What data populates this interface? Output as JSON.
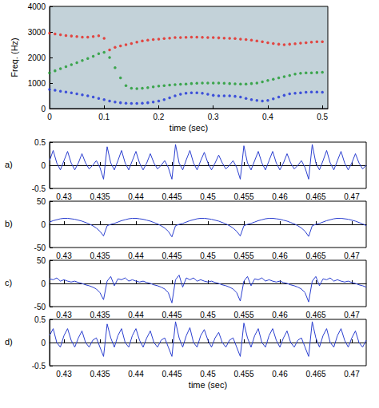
{
  "chart_data": [
    {
      "type": "scatter",
      "marker": "circle",
      "xlabel": "time (sec)",
      "ylabel": "Freq. (Hz)",
      "xlim": [
        0,
        0.51
      ],
      "xticks": [
        0,
        0.1,
        0.2,
        0.3,
        0.4,
        0.5
      ],
      "ylim": [
        0,
        4000
      ],
      "yticks": [
        0,
        1000,
        2000,
        3000,
        4000
      ],
      "x": [
        0,
        0.01,
        0.02,
        0.03,
        0.04,
        0.05,
        0.06,
        0.07,
        0.08,
        0.09,
        0.1,
        0.11,
        0.12,
        0.13,
        0.14,
        0.15,
        0.16,
        0.17,
        0.18,
        0.19,
        0.2,
        0.21,
        0.22,
        0.23,
        0.24,
        0.25,
        0.26,
        0.27,
        0.28,
        0.29,
        0.3,
        0.31,
        0.32,
        0.33,
        0.34,
        0.35,
        0.36,
        0.37,
        0.38,
        0.39,
        0.4,
        0.41,
        0.42,
        0.43,
        0.44,
        0.45,
        0.46,
        0.47,
        0.48,
        0.49,
        0.5
      ],
      "series": [
        {
          "color": "#e8231c",
          "values": [
            2950,
            2920,
            2890,
            2860,
            2840,
            2820,
            2800,
            2800,
            2820,
            2850,
            2750,
            2300,
            2400,
            2450,
            2500,
            2550,
            2600,
            2650,
            2680,
            2700,
            2720,
            2740,
            2760,
            2780,
            2780,
            2790,
            2800,
            2800,
            2790,
            2780,
            2780,
            2770,
            2760,
            2750,
            2740,
            2720,
            2700,
            2680,
            2650,
            2620,
            2580,
            2550,
            2520,
            2500,
            2520,
            2540,
            2560,
            2580,
            2600,
            2620,
            2620
          ]
        },
        {
          "color": "#1a9a2a",
          "values": [
            1400,
            1480,
            1560,
            1640,
            1720,
            1800,
            1880,
            1960,
            2050,
            2150,
            2200,
            2000,
            1600,
            1200,
            900,
            800,
            780,
            800,
            820,
            850,
            880,
            900,
            920,
            940,
            950,
            960,
            980,
            990,
            1000,
            1000,
            1000,
            1000,
            990,
            980,
            970,
            960,
            960,
            980,
            1000,
            1050,
            1100,
            1150,
            1200,
            1250,
            1300,
            1350,
            1380,
            1400,
            1400,
            1410,
            1420
          ]
        },
        {
          "color": "#1c2fd8",
          "values": [
            750,
            720,
            680,
            650,
            620,
            580,
            540,
            500,
            450,
            400,
            350,
            300,
            260,
            230,
            210,
            200,
            200,
            210,
            230,
            260,
            300,
            350,
            420,
            500,
            560,
            600,
            620,
            620,
            600,
            560,
            520,
            500,
            500,
            500,
            480,
            450,
            400,
            350,
            320,
            300,
            320,
            380,
            450,
            520,
            580,
            600,
            620,
            640,
            650,
            650,
            640
          ]
        }
      ]
    },
    {
      "type": "line",
      "label": "a)",
      "color": "#2b3fd0",
      "xlim": [
        0.428,
        0.472
      ],
      "xticks": [
        0.43,
        0.435,
        0.44,
        0.445,
        0.45,
        0.455,
        0.46,
        0.465,
        0.47
      ],
      "ylim": [
        -0.5,
        0.5
      ],
      "yticks": [
        -0.5,
        0,
        0.5
      ],
      "x": [
        0.428,
        0.4285,
        0.429,
        0.4295,
        0.43,
        0.4305,
        0.431,
        0.4315,
        0.432,
        0.4325,
        0.433,
        0.4335,
        0.434,
        0.4345,
        0.435,
        0.4355,
        0.436,
        0.4365,
        0.437,
        0.4375,
        0.438,
        0.4385,
        0.439,
        0.4395,
        0.44,
        0.4405,
        0.441,
        0.4415,
        0.442,
        0.4425,
        0.443,
        0.4435,
        0.444,
        0.4445,
        0.445,
        0.4455,
        0.446,
        0.4465,
        0.447,
        0.4475,
        0.448,
        0.4485,
        0.449,
        0.4495,
        0.45,
        0.4505,
        0.451,
        0.4515,
        0.452,
        0.4525,
        0.453,
        0.4535,
        0.454,
        0.4545,
        0.455,
        0.4555,
        0.456,
        0.4565,
        0.457,
        0.4575,
        0.458,
        0.4585,
        0.459,
        0.4595,
        0.46,
        0.4605,
        0.461,
        0.4615,
        0.462,
        0.4625,
        0.463,
        0.4635,
        0.464,
        0.4645,
        0.465,
        0.4655,
        0.466,
        0.4665,
        0.467,
        0.4675,
        0.468,
        0.4685,
        0.469,
        0.4695,
        0.47,
        0.4705,
        0.471,
        0.4715,
        0.472
      ],
      "values": [
        0.1,
        0.32,
        0.05,
        -0.1,
        0.1,
        0.3,
        0.05,
        -0.1,
        0.05,
        0.25,
        0.05,
        -0.08,
        0,
        0.1,
        -0.05,
        -0.3,
        0.4,
        0.05,
        -0.1,
        0.1,
        0.32,
        0.05,
        -0.1,
        0.1,
        0.3,
        0.05,
        -0.1,
        0.05,
        0.25,
        0.05,
        -0.08,
        0,
        0.1,
        -0.05,
        -0.3,
        0.45,
        0.05,
        -0.1,
        0.12,
        0.32,
        0.05,
        -0.1,
        0.1,
        0.28,
        0.05,
        -0.1,
        0.05,
        0.22,
        0.05,
        -0.08,
        0,
        0.1,
        -0.05,
        -0.3,
        0.42,
        0.05,
        -0.1,
        0.1,
        0.3,
        0.05,
        -0.1,
        0.1,
        0.3,
        0.05,
        -0.1,
        0.05,
        0.25,
        0.05,
        -0.08,
        0,
        0.1,
        -0.05,
        -0.3,
        0.45,
        0.05,
        -0.1,
        0.1,
        0.32,
        0.05,
        -0.1,
        0.1,
        0.3,
        0.05,
        -0.1,
        0.05,
        0.25,
        0.05,
        -0.08,
        0
      ]
    },
    {
      "type": "line",
      "label": "b)",
      "color": "#2b3fd0",
      "xlim": [
        0.428,
        0.472
      ],
      "xticks": [
        0.43,
        0.435,
        0.44,
        0.445,
        0.45,
        0.455,
        0.46,
        0.465,
        0.47
      ],
      "ylim": [
        -50,
        50
      ],
      "yticks": [
        -50,
        0,
        50
      ],
      "x": [
        0.428,
        0.4285,
        0.429,
        0.4295,
        0.43,
        0.4305,
        0.431,
        0.4315,
        0.432,
        0.4325,
        0.433,
        0.4335,
        0.434,
        0.4345,
        0.435,
        0.4355,
        0.436,
        0.4365,
        0.437,
        0.4375,
        0.438,
        0.4385,
        0.439,
        0.4395,
        0.44,
        0.4405,
        0.441,
        0.4415,
        0.442,
        0.4425,
        0.443,
        0.4435,
        0.444,
        0.4445,
        0.445,
        0.4455,
        0.446,
        0.4465,
        0.447,
        0.4475,
        0.448,
        0.4485,
        0.449,
        0.4495,
        0.45,
        0.4505,
        0.451,
        0.4515,
        0.452,
        0.4525,
        0.453,
        0.4535,
        0.454,
        0.4545,
        0.455,
        0.4555,
        0.456,
        0.4565,
        0.457,
        0.4575,
        0.458,
        0.4585,
        0.459,
        0.4595,
        0.46,
        0.4605,
        0.461,
        0.4615,
        0.462,
        0.4625,
        0.463,
        0.4635,
        0.464,
        0.4645,
        0.465,
        0.4655,
        0.466,
        0.4665,
        0.467,
        0.4675,
        0.468,
        0.4685,
        0.469,
        0.4695,
        0.47,
        0.4705,
        0.471,
        0.4715,
        0.472
      ],
      "values": [
        5,
        8,
        10,
        12,
        13,
        13,
        12,
        11,
        9,
        7,
        4,
        1,
        -3,
        -8,
        -15,
        -25,
        -3,
        0,
        2,
        5,
        8,
        10,
        12,
        13,
        13,
        12,
        11,
        9,
        7,
        4,
        1,
        -3,
        -8,
        -15,
        -27,
        -3,
        0,
        2,
        5,
        8,
        10,
        12,
        13,
        13,
        12,
        11,
        9,
        7,
        4,
        1,
        -3,
        -8,
        -15,
        -25,
        -3,
        0,
        2,
        5,
        8,
        10,
        12,
        13,
        13,
        12,
        11,
        9,
        7,
        4,
        1,
        -3,
        -8,
        -15,
        -26,
        -3,
        0,
        2,
        5,
        8,
        10,
        12,
        13,
        13,
        12,
        11,
        9,
        7,
        4,
        1,
        -3
      ]
    },
    {
      "type": "line",
      "label": "c)",
      "color": "#2b3fd0",
      "xlim": [
        0.428,
        0.472
      ],
      "xticks": [
        0.43,
        0.435,
        0.44,
        0.445,
        0.45,
        0.455,
        0.46,
        0.465,
        0.47
      ],
      "ylim": [
        -50,
        50
      ],
      "yticks": [
        -50,
        0,
        50
      ],
      "x": [
        0.428,
        0.4285,
        0.429,
        0.4295,
        0.43,
        0.4305,
        0.431,
        0.4315,
        0.432,
        0.4325,
        0.433,
        0.4335,
        0.434,
        0.4345,
        0.435,
        0.4355,
        0.436,
        0.4365,
        0.437,
        0.4375,
        0.438,
        0.4385,
        0.439,
        0.4395,
        0.44,
        0.4405,
        0.441,
        0.4415,
        0.442,
        0.4425,
        0.443,
        0.4435,
        0.444,
        0.4445,
        0.445,
        0.4455,
        0.446,
        0.4465,
        0.447,
        0.4475,
        0.448,
        0.4485,
        0.449,
        0.4495,
        0.45,
        0.4505,
        0.451,
        0.4515,
        0.452,
        0.4525,
        0.453,
        0.4535,
        0.454,
        0.4545,
        0.455,
        0.4555,
        0.456,
        0.4565,
        0.457,
        0.4575,
        0.458,
        0.4585,
        0.459,
        0.4595,
        0.46,
        0.4605,
        0.461,
        0.4615,
        0.462,
        0.4625,
        0.463,
        0.4635,
        0.464,
        0.4645,
        0.465,
        0.4655,
        0.466,
        0.4665,
        0.467,
        0.4675,
        0.468,
        0.4685,
        0.469,
        0.4695,
        0.47,
        0.4705,
        0.471,
        0.4715,
        0.472
      ],
      "values": [
        10,
        8,
        12,
        5,
        8,
        5,
        3,
        5,
        2,
        0,
        -3,
        -5,
        -8,
        -12,
        -20,
        -35,
        5,
        15,
        -5,
        10,
        8,
        12,
        5,
        8,
        5,
        3,
        5,
        2,
        0,
        -3,
        -5,
        -8,
        -12,
        -20,
        -42,
        8,
        18,
        -8,
        12,
        8,
        12,
        5,
        8,
        5,
        3,
        5,
        2,
        0,
        -3,
        -5,
        -8,
        -12,
        -20,
        -38,
        5,
        15,
        -5,
        10,
        8,
        12,
        5,
        8,
        5,
        3,
        5,
        2,
        0,
        -3,
        -5,
        -8,
        -12,
        -20,
        -40,
        5,
        15,
        -5,
        10,
        8,
        12,
        5,
        8,
        5,
        3,
        5,
        2,
        0,
        -3,
        -5,
        -8
      ]
    },
    {
      "type": "line",
      "label": "d)",
      "color": "#2b3fd0",
      "xlabel": "time (sec)",
      "xlim": [
        0.428,
        0.472
      ],
      "xticks": [
        0.43,
        0.435,
        0.44,
        0.445,
        0.45,
        0.455,
        0.46,
        0.465,
        0.47
      ],
      "ylim": [
        -0.5,
        0.5
      ],
      "yticks": [
        -0.5,
        0,
        0.5
      ],
      "x": [
        0.428,
        0.4285,
        0.429,
        0.4295,
        0.43,
        0.4305,
        0.431,
        0.4315,
        0.432,
        0.4325,
        0.433,
        0.4335,
        0.434,
        0.4345,
        0.435,
        0.4355,
        0.436,
        0.4365,
        0.437,
        0.4375,
        0.438,
        0.4385,
        0.439,
        0.4395,
        0.44,
        0.4405,
        0.441,
        0.4415,
        0.442,
        0.4425,
        0.443,
        0.4435,
        0.444,
        0.4445,
        0.445,
        0.4455,
        0.446,
        0.4465,
        0.447,
        0.4475,
        0.448,
        0.4485,
        0.449,
        0.4495,
        0.45,
        0.4505,
        0.451,
        0.4515,
        0.452,
        0.4525,
        0.453,
        0.4535,
        0.454,
        0.4545,
        0.455,
        0.4555,
        0.456,
        0.4565,
        0.457,
        0.4575,
        0.458,
        0.4585,
        0.459,
        0.4595,
        0.46,
        0.4605,
        0.461,
        0.4615,
        0.462,
        0.4625,
        0.463,
        0.4635,
        0.464,
        0.4645,
        0.465,
        0.4655,
        0.466,
        0.4665,
        0.467,
        0.4675,
        0.468,
        0.4685,
        0.469,
        0.4695,
        0.47,
        0.4705,
        0.471,
        0.4715,
        0.472
      ],
      "values": [
        0.15,
        0.3,
        0,
        -0.1,
        0.15,
        0.3,
        0.05,
        -0.1,
        0.1,
        0.25,
        0,
        -0.1,
        0.05,
        0.1,
        -0.1,
        -0.3,
        0.4,
        0.1,
        -0.1,
        0.15,
        0.3,
        0,
        -0.1,
        0.15,
        0.3,
        0.05,
        -0.1,
        0.1,
        0.25,
        0,
        -0.1,
        0.05,
        0.1,
        -0.1,
        -0.3,
        0.45,
        0.1,
        -0.1,
        0.15,
        0.32,
        0,
        -0.1,
        0.15,
        0.28,
        0.05,
        -0.1,
        0.1,
        0.22,
        0,
        -0.1,
        0.05,
        0.1,
        -0.1,
        -0.3,
        0.42,
        0.1,
        -0.1,
        0.15,
        0.3,
        0,
        -0.1,
        0.15,
        0.3,
        0.05,
        -0.1,
        0.1,
        0.25,
        0,
        -0.1,
        0.05,
        0.1,
        -0.1,
        -0.3,
        0.45,
        0.1,
        -0.1,
        0.15,
        0.3,
        0,
        -0.1,
        0.15,
        0.3,
        0.05,
        -0.1,
        0.1,
        0.25,
        0,
        -0.1,
        0.05
      ]
    }
  ]
}
